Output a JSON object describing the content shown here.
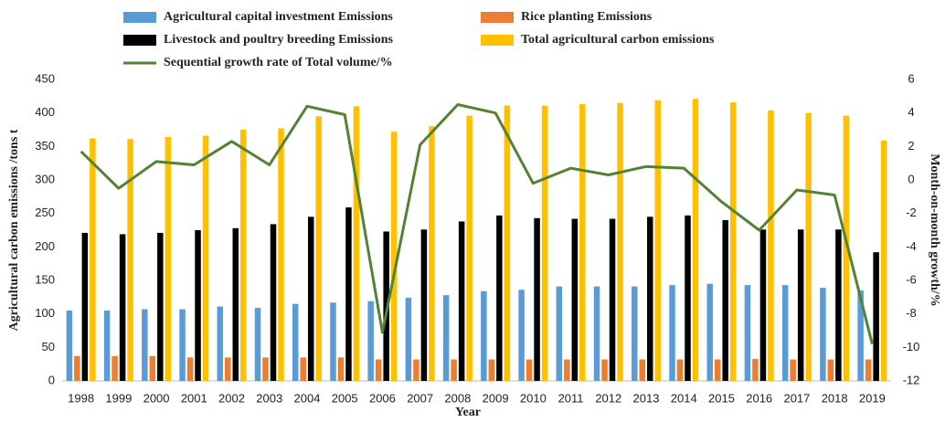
{
  "chart_data": {
    "type": "bar",
    "x_label": "Year",
    "y_label": "Agricultural carbon emissions /tons t",
    "y2_label": "Month-on-month growth/%",
    "categories": [
      "1998",
      "1999",
      "2000",
      "2001",
      "2002",
      "2003",
      "2004",
      "2005",
      "2006",
      "2007",
      "2008",
      "2009",
      "2010",
      "2011",
      "2012",
      "2013",
      "2014",
      "2015",
      "2016",
      "2017",
      "2018",
      "2019"
    ],
    "series": [
      {
        "name": "Agricultural capital investment Emissions",
        "type": "bar",
        "color": "#5b9bd5",
        "values": [
          105,
          105,
          107,
          107,
          111,
          109,
          115,
          117,
          119,
          124,
          128,
          134,
          136,
          141,
          141,
          141,
          143,
          145,
          143,
          143,
          139,
          135
        ]
      },
      {
        "name": "Rice planting Emissions",
        "type": "bar",
        "color": "#ed7d31",
        "values": [
          37,
          37,
          37,
          35,
          35,
          35,
          35,
          35,
          32,
          32,
          32,
          32,
          32,
          32,
          32,
          32,
          32,
          32,
          33,
          32,
          32,
          32
        ]
      },
      {
        "name": "Livestock and poultry breeding Emissions",
        "type": "bar",
        "color": "#000000",
        "values": [
          221,
          219,
          221,
          225,
          228,
          234,
          245,
          259,
          223,
          226,
          238,
          247,
          243,
          242,
          242,
          245,
          247,
          240,
          226,
          226,
          226,
          192
        ]
      },
      {
        "name": "Total agricultural carbon emissions",
        "type": "bar",
        "color": "#ffc000",
        "values": [
          362,
          361,
          364,
          366,
          375,
          377,
          395,
          410,
          372,
          380,
          396,
          411,
          411,
          413,
          415,
          419,
          421,
          416,
          404,
          400,
          396,
          359
        ]
      },
      {
        "name": "Sequential growth rate of Total volume/%",
        "type": "line",
        "axis": "y2",
        "color": "#548235",
        "values": [
          1.7,
          -0.5,
          1.1,
          0.9,
          2.3,
          0.9,
          4.4,
          3.9,
          -9.1,
          2.1,
          4.5,
          4.0,
          -0.2,
          0.7,
          0.3,
          0.8,
          0.7,
          -1.3,
          -3.0,
          -0.6,
          -0.9,
          -9.8
        ]
      }
    ],
    "ylim": [
      0,
      450
    ],
    "yticks": [
      0,
      50,
      100,
      150,
      200,
      250,
      300,
      350,
      400,
      450
    ],
    "y2lim": [
      -12,
      6
    ],
    "y2ticks": [
      -12,
      -10,
      -8,
      -6,
      -4,
      -2,
      0,
      2,
      4,
      6
    ],
    "grid": false
  }
}
